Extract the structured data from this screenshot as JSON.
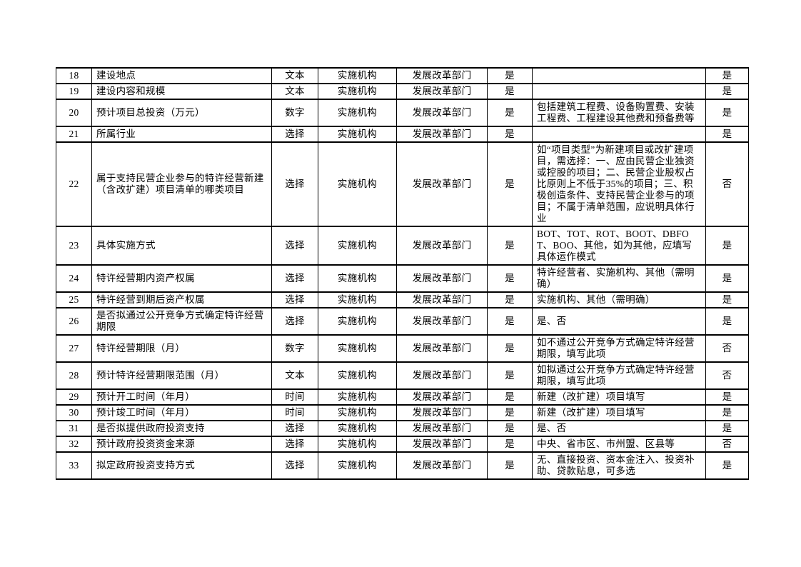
{
  "page": {
    "background": "#ffffff",
    "text_color": "#000000",
    "border_color": "#000000"
  },
  "table": {
    "rows": [
      {
        "no": "18",
        "item": "建设地点",
        "type": "文本",
        "org": "实施机构",
        "dept": "发展改革部门",
        "required": "是",
        "note": "",
        "flag": "是"
      },
      {
        "no": "19",
        "item": "建设内容和规模",
        "type": "文本",
        "org": "实施机构",
        "dept": "发展改革部门",
        "required": "是",
        "note": "",
        "flag": "是"
      },
      {
        "no": "20",
        "item": "预计项目总投资（万元）",
        "type": "数字",
        "org": "实施机构",
        "dept": "发展改革部门",
        "required": "是",
        "note": "包括建筑工程费、设备购置费、安装工程费、工程建设其他费和预备费等",
        "flag": "是"
      },
      {
        "no": "21",
        "item": "所属行业",
        "type": "选择",
        "org": "实施机构",
        "dept": "发展改革部门",
        "required": "是",
        "note": "",
        "flag": "是"
      },
      {
        "no": "22",
        "item": "属于支持民营企业参与的特许经营新建（含改扩建）项目清单的哪类项目",
        "type": "选择",
        "org": "实施机构",
        "dept": "发展改革部门",
        "required": "是",
        "note": "如“项目类型”为新建项目或改扩建项目，需选择：一、应由民营企业独资或控股的项目；二、民营企业股权占比原则上不低于35%的项目；三、积极创造条件、支持民营企业参与的项目；不属于清单范围，应说明具体行业",
        "flag": "否"
      },
      {
        "no": "23",
        "item": "具体实施方式",
        "type": "选择",
        "org": "实施机构",
        "dept": "发展改革部门",
        "required": "是",
        "note": "BOT、TOT、ROT、BOOT、DBFOT、BOO、其他，如为其他，应填写具体运作模式",
        "flag": "是"
      },
      {
        "no": "24",
        "item": "特许经营期内资产权属",
        "type": "选择",
        "org": "实施机构",
        "dept": "发展改革部门",
        "required": "是",
        "note": "特许经营者、实施机构、其他（需明确）",
        "flag": "是"
      },
      {
        "no": "25",
        "item": "特许经营到期后资产权属",
        "type": "选择",
        "org": "实施机构",
        "dept": "发展改革部门",
        "required": "是",
        "note": "实施机构、其他（需明确）",
        "flag": "是"
      },
      {
        "no": "26",
        "item": "是否拟通过公开竞争方式确定特许经营期限",
        "type": "选择",
        "org": "实施机构",
        "dept": "发展改革部门",
        "required": "是",
        "note": "是、否",
        "flag": "是"
      },
      {
        "no": "27",
        "item": "特许经营期限（月）",
        "type": "数字",
        "org": "实施机构",
        "dept": "发展改革部门",
        "required": "是",
        "note": "如不通过公开竞争方式确定特许经营期限，填写此项",
        "flag": "否"
      },
      {
        "no": "28",
        "item": "预计特许经营期限范围（月）",
        "type": "文本",
        "org": "实施机构",
        "dept": "发展改革部门",
        "required": "是",
        "note": "如拟通过公开竞争方式确定特许经营期限，填写此项",
        "flag": "否"
      },
      {
        "no": "29",
        "item": "预计开工时间（年月）",
        "type": "时间",
        "org": "实施机构",
        "dept": "发展改革部门",
        "required": "是",
        "note": "新建（改扩建）项目填写",
        "flag": "是"
      },
      {
        "no": "30",
        "item": "预计竣工时间（年月）",
        "type": "时间",
        "org": "实施机构",
        "dept": "发展改革部门",
        "required": "是",
        "note": "新建（改扩建）项目填写",
        "flag": "是"
      },
      {
        "no": "31",
        "item": "是否拟提供政府投资支持",
        "type": "选择",
        "org": "实施机构",
        "dept": "发展改革部门",
        "required": "是",
        "note": "是、否",
        "flag": "是"
      },
      {
        "no": "32",
        "item": "预计政府投资资金来源",
        "type": "选择",
        "org": "实施机构",
        "dept": "发展改革部门",
        "required": "是",
        "note": "中央、省市区、市州盟、区县等",
        "flag": "否"
      },
      {
        "no": "33",
        "item": "拟定政府投资支持方式",
        "type": "选择",
        "org": "实施机构",
        "dept": "发展改革部门",
        "required": "是",
        "note": "无、直接投资、资本金注入、投资补助、贷款贴息，可多选",
        "flag": "是"
      }
    ]
  }
}
